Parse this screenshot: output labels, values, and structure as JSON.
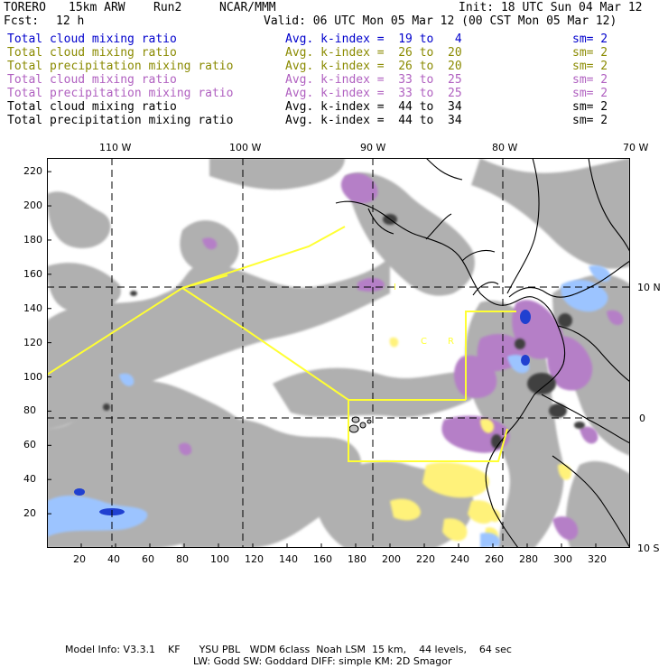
{
  "header": {
    "model": "TORERO",
    "resolution": "15km ARW",
    "run": "Run2",
    "center": "NCAR/MMM",
    "init": "Init: 18 UTC Sun 04 Mar 12",
    "fcst_label": "Fcst:",
    "fcst_value": "12 h",
    "valid": "Valid: 06 UTC Mon 05 Mar 12 (00 CST Mon 05 Mar 12)"
  },
  "legend": [
    {
      "field": "Total cloud mixing ratio",
      "kindex": "Avg. k-index =  19 to   4",
      "sm": "sm= 2",
      "color": "#0000cc"
    },
    {
      "field": "Total cloud mixing ratio",
      "kindex": "Avg. k-index =  26 to  20",
      "sm": "sm= 2",
      "color": "#8a8a00"
    },
    {
      "field": "Total precipitation mixing ratio",
      "kindex": "Avg. k-index =  26 to  20",
      "sm": "sm= 2",
      "color": "#8a8a00"
    },
    {
      "field": "Total cloud mixing ratio",
      "kindex": "Avg. k-index =  33 to  25",
      "sm": "sm= 2",
      "color": "#b060c0"
    },
    {
      "field": "Total precipitation mixing ratio",
      "kindex": "Avg. k-index =  33 to  25",
      "sm": "sm= 2",
      "color": "#b060c0"
    },
    {
      "field": "Total cloud mixing ratio",
      "kindex": "Avg. k-index =  44 to  34",
      "sm": "sm= 2",
      "color": "#000000"
    },
    {
      "field": "Total precipitation mixing ratio",
      "kindex": "Avg. k-index =  44 to  34",
      "sm": "sm= 2",
      "color": "#000000"
    }
  ],
  "map": {
    "lon_labels": [
      "110 W",
      "100 W",
      "90 W",
      "80 W",
      "70 W"
    ],
    "lat_labels": [
      "10 N",
      "0",
      "10 S"
    ],
    "grid_x_ticks": [
      "20",
      "40",
      "60",
      "80",
      "100",
      "120",
      "140",
      "160",
      "180",
      "200",
      "220",
      "240",
      "260",
      "280",
      "300",
      "320"
    ],
    "grid_y_ticks": [
      "220",
      "200",
      "180",
      "160",
      "140",
      "120",
      "100",
      "80",
      "60",
      "40",
      "20"
    ],
    "map_labels": [
      "I",
      "C",
      "R"
    ],
    "colors": {
      "gray": "#a8a8a8",
      "dark": "#404040",
      "violet": "#b57fc7",
      "yellow": "#fff27a",
      "blue": "#9cc4ff",
      "deepblue": "#2040d0",
      "border": "#ffff33"
    }
  },
  "footer": {
    "line1": "Model Info: V3.3.1    KF      YSU PBL   WDM 6class  Noah LSM  15 km,    44 levels,    64 sec",
    "line2": "LW: Godd SW: Goddard DIFF: simple KM: 2D Smagor"
  }
}
